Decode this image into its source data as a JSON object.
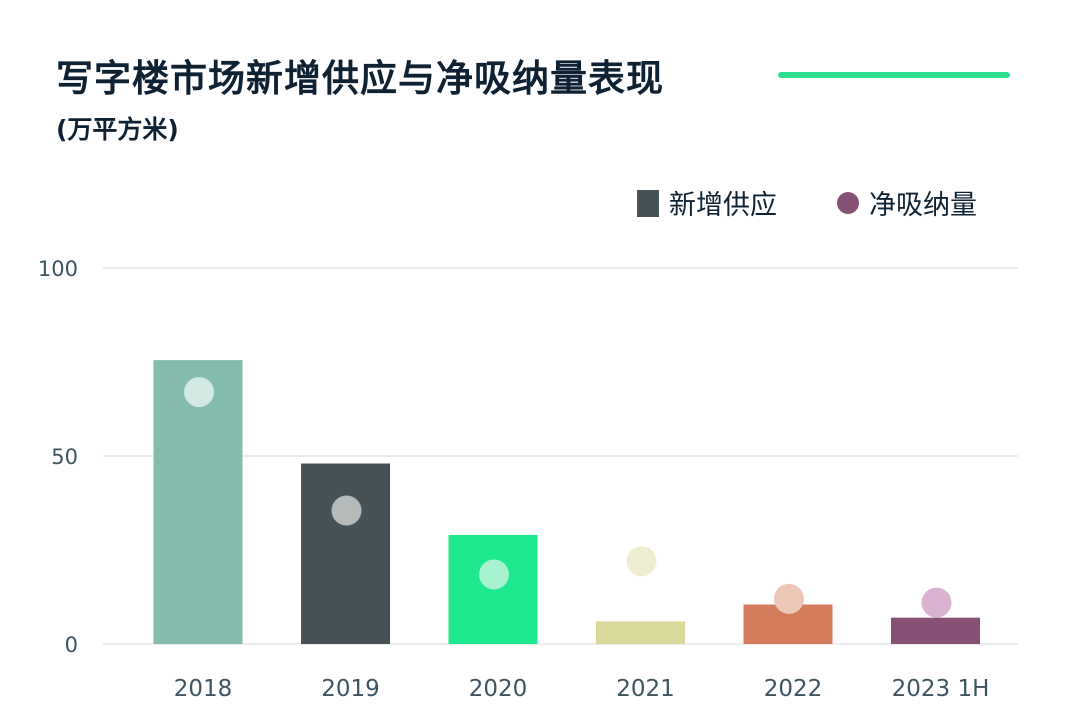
{
  "title": "写字楼市场新增供应与净吸纳量表现",
  "subtitle": "(万平方米)",
  "colors": {
    "title": "#0f2233",
    "accent_line": "#2de08f",
    "axis_text": "#3e5461",
    "grid": "#d6dadd",
    "legend_bar": "#465256",
    "legend_dot": "#865174"
  },
  "chart_data": {
    "type": "bar",
    "title": "写字楼市场新增供应与净吸纳量表现",
    "subtitle": "(万平方米)",
    "categories": [
      "2018",
      "2019",
      "2020",
      "2021",
      "2022",
      "2023 1H"
    ],
    "series": [
      {
        "name": "新增供应",
        "kind": "bar",
        "values": [
          75.5,
          48,
          29,
          6,
          10.5,
          7
        ]
      },
      {
        "name": "净吸纳量",
        "kind": "dot",
        "values": [
          67,
          35.5,
          18.5,
          22,
          12,
          11
        ]
      }
    ],
    "bar_colors": [
      "#84bbac",
      "#465256",
      "#1ee98f",
      "#d8d89a",
      "#d47b5b",
      "#865174"
    ],
    "dot_colors": [
      "#d3e8e3",
      "#b5babb",
      "#a8f3cf",
      "#efedcf",
      "#ecc7b7",
      "#dcb2d1"
    ],
    "ylim": [
      0,
      100
    ],
    "yticks": [
      0,
      50,
      100
    ],
    "grid": true,
    "legend": "top-right"
  }
}
